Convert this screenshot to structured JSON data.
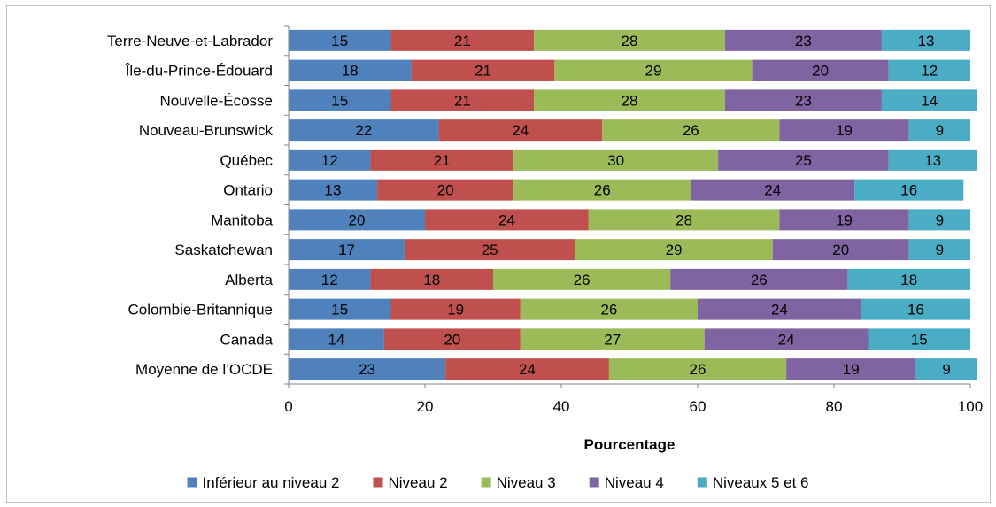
{
  "chart_data": {
    "type": "bar",
    "orientation": "horizontal",
    "stacked": true,
    "categories": [
      "Terre-Neuve-et-Labrador",
      "Île-du-Prince-Édouard",
      "Nouvelle-Écosse",
      "Nouveau-Brunswick",
      "Québec",
      "Ontario",
      "Manitoba",
      "Saskatchewan",
      "Alberta",
      "Colombie-Britannique",
      "Canada",
      "Moyenne de l’OCDE"
    ],
    "series": [
      {
        "name": "Inférieur au niveau 2",
        "color": "#4f81bd",
        "values": [
          15,
          18,
          15,
          22,
          12,
          13,
          20,
          17,
          12,
          15,
          14,
          23
        ],
        "labels": [
          "15",
          "18",
          "15",
          "22",
          "12",
          "13",
          "20",
          "17",
          "12",
          "15",
          "14",
          "23"
        ]
      },
      {
        "name": "Niveau 2",
        "color": "#c0504d",
        "values": [
          21,
          21,
          21,
          24,
          21,
          20,
          24,
          25,
          18,
          19,
          20,
          24
        ],
        "labels": [
          "21",
          "21",
          "21",
          "24",
          "21",
          "20",
          "24",
          "25",
          "18",
          "19",
          "20",
          "24"
        ]
      },
      {
        "name": "Niveau 3",
        "color": "#9bbb59",
        "values": [
          28,
          29,
          28,
          26,
          30,
          26,
          28,
          29,
          26,
          26,
          27,
          26
        ],
        "labels": [
          "28",
          "29",
          "28",
          "26",
          "30",
          "26",
          "28",
          "29",
          "26",
          "26",
          "27",
          "26"
        ]
      },
      {
        "name": "Niveau 4",
        "color": "#8064a2",
        "values": [
          23,
          20,
          23,
          19,
          25,
          24,
          19,
          20,
          26,
          24,
          24,
          19
        ],
        "labels": [
          "23",
          "20",
          "23",
          "19",
          "25",
          "24",
          "19",
          "20",
          "26",
          "24",
          "24",
          "19"
        ]
      },
      {
        "name": "Niveaux 5 et 6",
        "color": "#4bacc6",
        "values": [
          13,
          12,
          14,
          9,
          13,
          16,
          9,
          9,
          18,
          16,
          15,
          9
        ],
        "labels": [
          "13",
          "12",
          "14",
          "9",
          "13",
          "16",
          "9",
          "9",
          "18",
          "16",
          "15",
          "9"
        ]
      }
    ],
    "xlabel": "Pourcentage",
    "xlim": [
      0,
      100
    ],
    "xticks": [
      0,
      20,
      40,
      60,
      80,
      100
    ],
    "xtick_labels": [
      "0",
      "20",
      "40",
      "60",
      "80",
      "100"
    ],
    "grid": false,
    "legend_position": "bottom"
  }
}
